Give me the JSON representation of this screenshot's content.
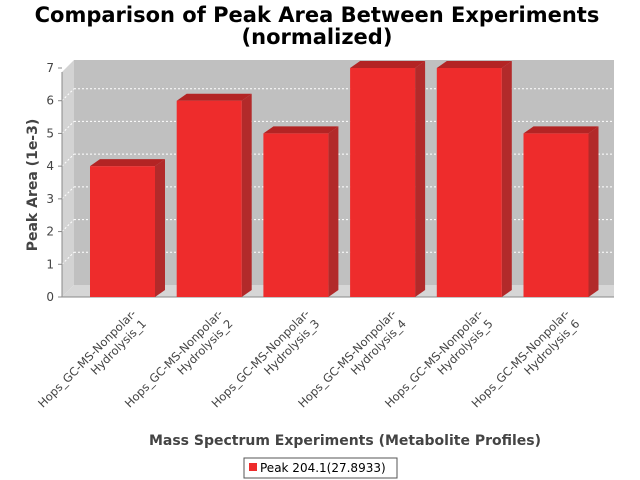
{
  "chart_data": {
    "type": "bar",
    "title_lines": [
      "Comparison of Peak Area Between Experiments",
      "(normalized)"
    ],
    "xlabel": "Mass Spectrum Experiments (Metabolite Profiles)",
    "ylabel": "Peak Area (1e-3)",
    "ylim": [
      0,
      7
    ],
    "yticks": [
      0,
      1,
      2,
      3,
      4,
      5,
      6,
      7
    ],
    "grid": true,
    "legend_position": "bottom",
    "categories": [
      [
        "Hops_GC-MS-Nonpolar-",
        "Hydrolysis_1"
      ],
      [
        "Hops_GC-MS-Nonpolar-",
        "Hydrolysis_2"
      ],
      [
        "Hops_GC-MS-Nonpolar-",
        "Hydrolysis_3"
      ],
      [
        "Hops_GC-MS-Nonpolar-",
        "Hydrolysis_4"
      ],
      [
        "Hops_GC-MS-Nonpolar-",
        "Hydrolysis_5"
      ],
      [
        "Hops_GC-MS-Nonpolar-",
        "Hydrolysis_6"
      ]
    ],
    "series": [
      {
        "name": "Peak 204.1(27.8933)",
        "values": [
          4,
          6,
          5,
          7,
          7,
          5
        ],
        "color": "#ee2c2c"
      }
    ]
  }
}
